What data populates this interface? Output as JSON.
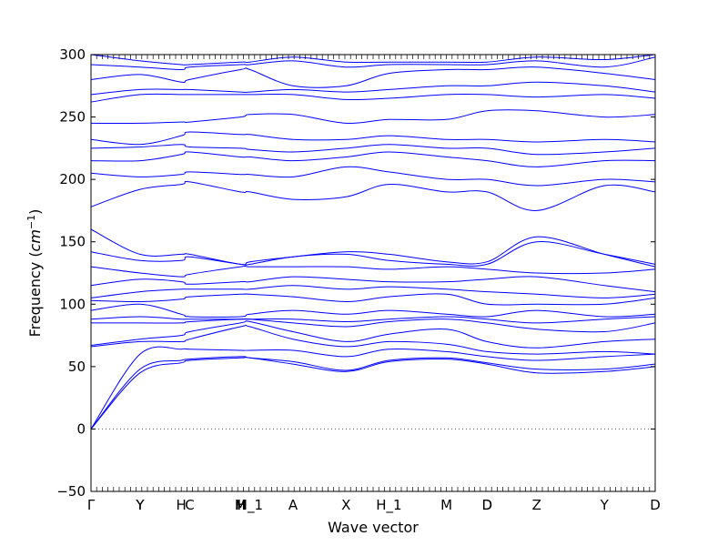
{
  "chart_data": {
    "type": "line",
    "title": "",
    "xlabel": "Wave vector",
    "ylabel_prefix": "Frequency (",
    "ylabel_unit_base": "cm",
    "ylabel_unit_exp": "−1",
    "ylabel_suffix": ")",
    "ylim": [
      -50,
      300
    ],
    "yticks": [
      -50,
      0,
      50,
      100,
      150,
      200,
      250,
      300
    ],
    "xlim": [
      0,
      1
    ],
    "zero_line": true,
    "line_color": "#0000ff",
    "grid": false,
    "legend": "none",
    "high_symmetry_points": [
      {
        "label": "Γ",
        "x": 0.0
      },
      {
        "label": "Y",
        "x": 0.087
      },
      {
        "label": "Y",
        "x": 0.087
      },
      {
        "label": "H",
        "x": 0.16
      },
      {
        "label": "C",
        "x": 0.175
      },
      {
        "label": "H",
        "x": 0.265
      },
      {
        "label": "M",
        "x": 0.265
      },
      {
        "label": "H_1",
        "x": 0.282
      },
      {
        "label": "A",
        "x": 0.358
      },
      {
        "label": "X",
        "x": 0.452
      },
      {
        "label": "H_1",
        "x": 0.528
      },
      {
        "label": "M",
        "x": 0.63
      },
      {
        "label": "D",
        "x": 0.702
      },
      {
        "label": "D",
        "x": 0.702
      },
      {
        "label": "Z",
        "x": 0.79
      },
      {
        "label": "Y",
        "x": 0.91
      },
      {
        "label": "D",
        "x": 1.0
      }
    ],
    "x_nodes": [
      0.0,
      0.087,
      0.16,
      0.175,
      0.265,
      0.282,
      0.358,
      0.452,
      0.528,
      0.63,
      0.702,
      0.79,
      0.91,
      1.0
    ],
    "series": [
      {
        "values": [
          0,
          45,
          53,
          55,
          57,
          57,
          52,
          46,
          54,
          56,
          52,
          45,
          46,
          50
        ]
      },
      {
        "values": [
          0,
          48,
          55,
          56,
          58,
          57,
          54,
          47,
          55,
          57,
          53,
          48,
          48,
          52
        ]
      },
      {
        "values": [
          0,
          60,
          64,
          64,
          63,
          63,
          63,
          58,
          64,
          62,
          58,
          55,
          58,
          60
        ]
      },
      {
        "values": [
          66,
          70,
          70,
          72,
          82,
          82,
          72,
          66,
          70,
          68,
          62,
          60,
          62,
          60
        ]
      },
      {
        "values": [
          67,
          72,
          75,
          78,
          85,
          86,
          78,
          70,
          76,
          80,
          70,
          65,
          70,
          72
        ]
      },
      {
        "values": [
          85,
          85,
          85,
          86,
          88,
          88,
          85,
          82,
          86,
          88,
          85,
          80,
          78,
          85
        ]
      },
      {
        "values": [
          88,
          90,
          88,
          88,
          88,
          88,
          88,
          86,
          88,
          90,
          88,
          85,
          88,
          90
        ]
      },
      {
        "values": [
          95,
          100,
          92,
          90,
          90,
          92,
          95,
          92,
          95,
          92,
          90,
          95,
          90,
          92
        ]
      },
      {
        "values": [
          103,
          102,
          104,
          106,
          108,
          108,
          106,
          102,
          106,
          108,
          100,
          100,
          100,
          105
        ]
      },
      {
        "values": [
          105,
          110,
          112,
          112,
          112,
          112,
          115,
          112,
          114,
          112,
          110,
          108,
          105,
          108
        ]
      },
      {
        "values": [
          115,
          120,
          118,
          116,
          118,
          118,
          122,
          120,
          118,
          118,
          120,
          122,
          115,
          110
        ]
      },
      {
        "values": [
          130,
          125,
          122,
          124,
          130,
          130,
          130,
          130,
          128,
          130,
          128,
          125,
          125,
          128
        ]
      },
      {
        "values": [
          142,
          135,
          135,
          138,
          132,
          132,
          138,
          140,
          135,
          132,
          132,
          150,
          140,
          132
        ]
      },
      {
        "values": [
          160,
          140,
          140,
          140,
          132,
          134,
          138,
          142,
          140,
          134,
          134,
          154,
          140,
          130
        ]
      },
      {
        "values": [
          178,
          192,
          196,
          198,
          190,
          190,
          184,
          186,
          196,
          190,
          190,
          175,
          195,
          190
        ]
      },
      {
        "values": [
          205,
          202,
          204,
          206,
          204,
          204,
          202,
          210,
          206,
          200,
          200,
          195,
          200,
          198
        ]
      },
      {
        "values": [
          215,
          215,
          220,
          222,
          218,
          218,
          215,
          218,
          222,
          218,
          215,
          210,
          215,
          215
        ]
      },
      {
        "values": [
          225,
          226,
          228,
          226,
          225,
          224,
          222,
          225,
          228,
          225,
          225,
          220,
          222,
          225
        ]
      },
      {
        "values": [
          232,
          228,
          235,
          238,
          236,
          236,
          232,
          232,
          235,
          232,
          232,
          230,
          232,
          230
        ]
      },
      {
        "values": [
          245,
          245,
          246,
          246,
          250,
          252,
          252,
          245,
          248,
          248,
          255,
          255,
          250,
          252
        ]
      },
      {
        "values": [
          262,
          268,
          268,
          268,
          268,
          268,
          268,
          264,
          265,
          268,
          268,
          266,
          268,
          265
        ]
      },
      {
        "values": [
          268,
          272,
          272,
          272,
          270,
          270,
          272,
          270,
          272,
          275,
          275,
          278,
          275,
          270
        ]
      },
      {
        "values": [
          280,
          284,
          278,
          280,
          288,
          288,
          275,
          275,
          285,
          288,
          288,
          290,
          285,
          280
        ]
      },
      {
        "values": [
          292,
          290,
          288,
          290,
          292,
          292,
          295,
          290,
          292,
          292,
          292,
          295,
          290,
          298
        ]
      },
      {
        "values": [
          300,
          295,
          292,
          292,
          294,
          294,
          298,
          294,
          294,
          294,
          294,
          298,
          296,
          300
        ]
      }
    ]
  }
}
